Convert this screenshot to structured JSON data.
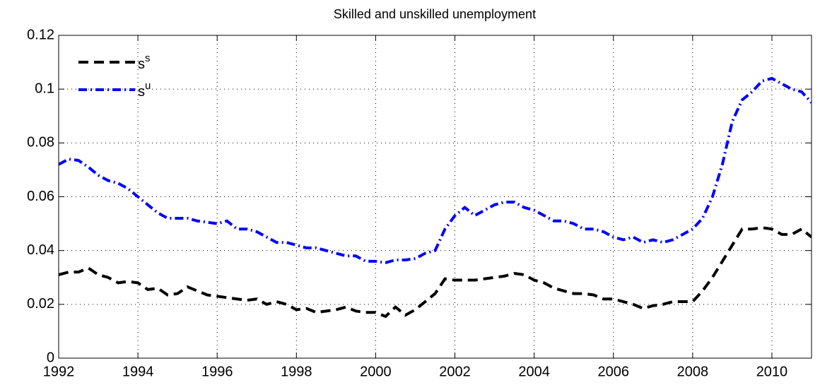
{
  "chart_data": {
    "type": "line",
    "title": "Skilled and unskilled unemployment",
    "x": [
      1992,
      1992.25,
      1992.5,
      1992.75,
      1993,
      1993.25,
      1993.5,
      1993.75,
      1994,
      1994.25,
      1994.5,
      1994.75,
      1995,
      1995.25,
      1995.5,
      1995.75,
      1996,
      1996.25,
      1996.5,
      1996.75,
      1997,
      1997.25,
      1997.5,
      1997.75,
      1998,
      1998.25,
      1998.5,
      1998.75,
      1999,
      1999.25,
      1999.5,
      1999.75,
      2000,
      2000.25,
      2000.5,
      2000.75,
      2001,
      2001.25,
      2001.5,
      2001.75,
      2002,
      2002.25,
      2002.5,
      2002.75,
      2003,
      2003.25,
      2003.5,
      2003.75,
      2004,
      2004.25,
      2004.5,
      2004.75,
      2005,
      2005.25,
      2005.5,
      2005.75,
      2006,
      2006.25,
      2006.5,
      2006.75,
      2007,
      2007.25,
      2007.5,
      2007.75,
      2008,
      2008.25,
      2008.5,
      2008.75,
      2009,
      2009.25,
      2009.5,
      2009.75,
      2010,
      2010.25,
      2010.5,
      2010.75,
      2011
    ],
    "series": [
      {
        "name": "s^s",
        "color": "#000000",
        "dash": "14,8",
        "values": [
          0.031,
          0.032,
          0.032,
          0.0335,
          0.031,
          0.03,
          0.028,
          0.0285,
          0.028,
          0.0255,
          0.026,
          0.0235,
          0.024,
          0.0265,
          0.025,
          0.0235,
          0.023,
          0.0225,
          0.022,
          0.0215,
          0.022,
          0.02,
          0.021,
          0.02,
          0.018,
          0.0185,
          0.017,
          0.0175,
          0.018,
          0.019,
          0.0175,
          0.017,
          0.017,
          0.0155,
          0.019,
          0.016,
          0.018,
          0.021,
          0.024,
          0.0295,
          0.029,
          0.029,
          0.029,
          0.0295,
          0.03,
          0.0305,
          0.0315,
          0.031,
          0.029,
          0.028,
          0.026,
          0.025,
          0.024,
          0.024,
          0.0235,
          0.022,
          0.022,
          0.021,
          0.02,
          0.0185,
          0.0195,
          0.02,
          0.021,
          0.021,
          0.021,
          0.025,
          0.03,
          0.036,
          0.042,
          0.048,
          0.048,
          0.0485,
          0.048,
          0.046,
          0.046,
          0.048,
          0.045
        ]
      },
      {
        "name": "s^u",
        "color": "#0000ff",
        "dash": "12,5,2,5",
        "values": [
          0.072,
          0.074,
          0.0735,
          0.071,
          0.068,
          0.066,
          0.065,
          0.063,
          0.06,
          0.057,
          0.054,
          0.052,
          0.052,
          0.052,
          0.051,
          0.0505,
          0.05,
          0.051,
          0.048,
          0.048,
          0.047,
          0.045,
          0.043,
          0.043,
          0.042,
          0.041,
          0.041,
          0.04,
          0.039,
          0.038,
          0.038,
          0.036,
          0.036,
          0.0355,
          0.0365,
          0.0365,
          0.037,
          0.039,
          0.04,
          0.048,
          0.053,
          0.056,
          0.053,
          0.055,
          0.057,
          0.058,
          0.058,
          0.056,
          0.055,
          0.053,
          0.051,
          0.051,
          0.05,
          0.048,
          0.048,
          0.047,
          0.045,
          0.044,
          0.045,
          0.043,
          0.044,
          0.043,
          0.044,
          0.046,
          0.048,
          0.052,
          0.06,
          0.072,
          0.088,
          0.096,
          0.099,
          0.103,
          0.104,
          0.102,
          0.1,
          0.099,
          0.095
        ]
      }
    ],
    "xlim": [
      1992,
      2011
    ],
    "xticks": [
      1992,
      1994,
      1996,
      1998,
      2000,
      2002,
      2004,
      2006,
      2008,
      2010
    ],
    "ylim": [
      0,
      0.12
    ],
    "yticks": [
      0,
      0.02,
      0.04,
      0.06,
      0.08,
      0.1,
      0.12
    ],
    "grid": true,
    "legend": "northwest"
  }
}
